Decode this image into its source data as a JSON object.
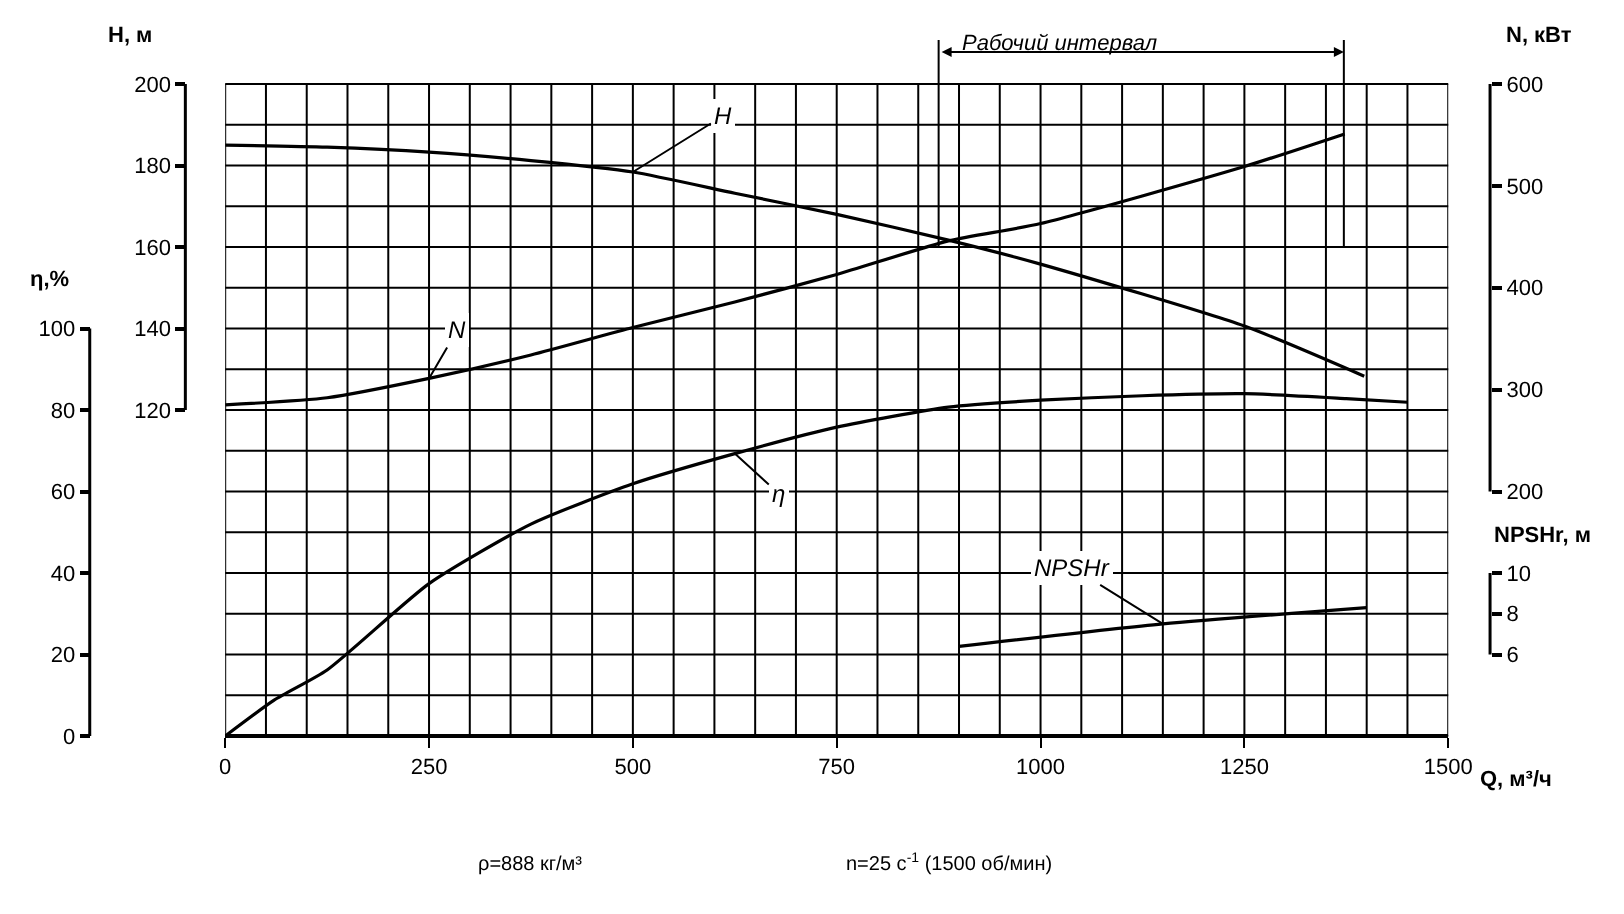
{
  "chart_data": [
    {
      "type": "line",
      "xlabel": "Q, м³/ч",
      "ylabel": "H, м",
      "y2label": "N, кВт",
      "y3label": "η,%",
      "xlim": [
        0,
        1500
      ],
      "xticks": [
        0,
        250,
        500,
        750,
        1000,
        1250,
        1500
      ],
      "ylim": [
        40,
        200
      ],
      "yticks": [
        120,
        140,
        160,
        180,
        200
      ],
      "y2lim": [
        -40,
        600
      ],
      "y2ticks": [
        200,
        300,
        400,
        500,
        600
      ],
      "y3lim": [
        0,
        160
      ],
      "y3ticks": [
        0,
        20,
        40,
        60,
        80,
        100
      ],
      "grid": true,
      "legend": false,
      "marker": "none",
      "line_style": "solid",
      "series": [
        {
          "name": "H",
          "color": "#000000",
          "x": [
            0,
            125,
            250,
            375,
            500,
            625,
            750,
            887,
            1000,
            1250,
            1397
          ],
          "values": [
            185,
            184.5,
            183.3,
            181.2,
            178.4,
            173.2,
            168,
            161.7,
            155.8,
            140.6,
            128.3
          ]
        },
        {
          "name": "N",
          "color": "#000000",
          "axis": "y2",
          "x": [
            0,
            125,
            250,
            375,
            500,
            625,
            750,
            887,
            1000,
            1250,
            1373
          ],
          "values": [
            285,
            292,
            311,
            334,
            361,
            386,
            413,
            446,
            463,
            519,
            551
          ]
        },
        {
          "name": "η",
          "color": "#000000",
          "axis": "y3",
          "x": [
            0,
            60,
            125,
            250,
            375,
            500,
            625,
            750,
            887,
            1000,
            1125,
            1250,
            1375,
            1450
          ],
          "values": [
            0,
            8.8,
            16.2,
            37.4,
            52,
            61.9,
            69.3,
            75.8,
            80.7,
            82.4,
            83.5,
            84,
            82.8,
            81.9
          ]
        }
      ],
      "ref_lines": [
        {
          "axis": "x",
          "value": 875,
          "label": "Рабочий интервал",
          "color": "#000000"
        },
        {
          "axis": "x",
          "value": 1372,
          "color": "#000000"
        }
      ],
      "annotations": [
        "ρ=888 кг/м³",
        "n=25 с$^{-1}$ (1500 об/мин)"
      ]
    },
    {
      "type": "line",
      "ylabel": "NPSHr, м",
      "xlim": [
        0,
        1500
      ],
      "ylim": [
        2,
        34
      ],
      "yticks": [
        6,
        8,
        10
      ],
      "tick_labels": "y",
      "legend": false,
      "marker": "none",
      "line_style": "solid",
      "series": [
        {
          "name": "NPSHr",
          "color": "#000000",
          "x": [
            900,
            1150,
            1400
          ],
          "values": [
            6.4,
            7.5,
            8.3
          ]
        }
      ]
    }
  ]
}
